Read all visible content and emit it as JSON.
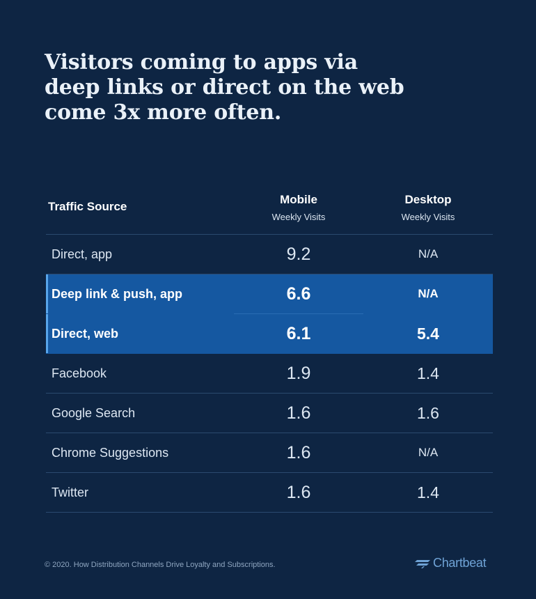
{
  "title": "Visitors coming to apps via deep links or direct on the web come 3x more often.",
  "chart_data": {
    "type": "table",
    "columns": [
      {
        "label": "Traffic Source",
        "sublabel": ""
      },
      {
        "label": "Mobile",
        "sublabel": "Weekly Visits"
      },
      {
        "label": "Desktop",
        "sublabel": "Weekly Visits"
      }
    ],
    "rows": [
      {
        "source": "Direct, app",
        "mobile": "9.2",
        "desktop": "N/A",
        "highlight": false
      },
      {
        "source": "Deep link & push, app",
        "mobile": "6.6",
        "desktop": "N/A",
        "highlight": true
      },
      {
        "source": "Direct, web",
        "mobile": "6.1",
        "desktop": "5.4",
        "highlight": true
      },
      {
        "source": "Facebook",
        "mobile": "1.9",
        "desktop": "1.4",
        "highlight": false
      },
      {
        "source": "Google Search",
        "mobile": "1.6",
        "desktop": "1.6",
        "highlight": false
      },
      {
        "source": "Chrome Suggestions",
        "mobile": "1.6",
        "desktop": "N/A",
        "highlight": false
      },
      {
        "source": "Twitter",
        "mobile": "1.6",
        "desktop": "1.4",
        "highlight": false
      }
    ]
  },
  "footer": "© 2020. How Distribution Channels Drive Loyalty and Subscriptions.",
  "logo_text": "Chartbeat",
  "colors": {
    "background": "#0e2543",
    "highlight_row": "#1558a1",
    "highlight_accent": "#58a6ec",
    "logo": "#6fa3d6"
  }
}
